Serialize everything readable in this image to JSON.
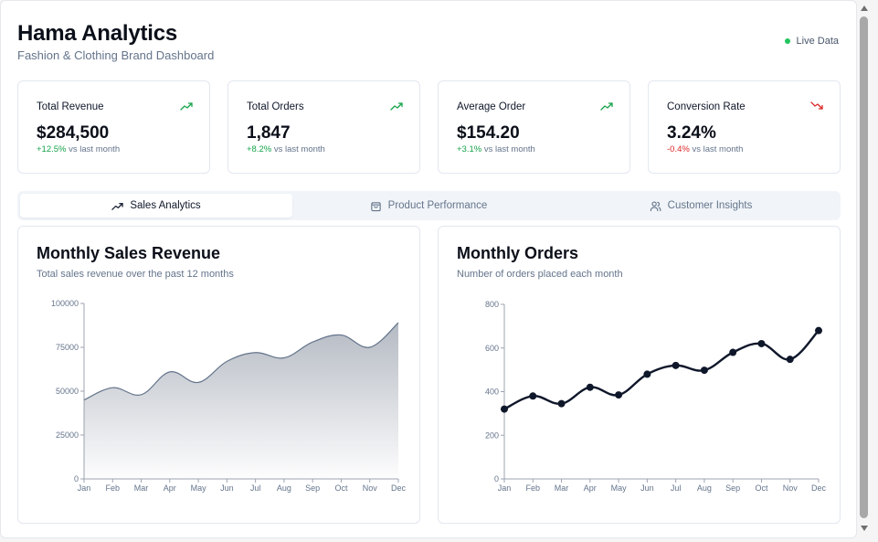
{
  "header": {
    "title": "Hama Analytics",
    "subtitle": "Fashion & Clothing Brand Dashboard",
    "live_label": "Live Data",
    "live_color": "#22c55e"
  },
  "kpis": [
    {
      "label": "Total Revenue",
      "value": "$284,500",
      "change": "+12.5%",
      "change_suffix": "vs last month",
      "trend": "up",
      "icon": "trending-up-icon"
    },
    {
      "label": "Total Orders",
      "value": "1,847",
      "change": "+8.2%",
      "change_suffix": "vs last month",
      "trend": "up",
      "icon": "trending-up-icon"
    },
    {
      "label": "Average Order",
      "value": "$154.20",
      "change": "+3.1%",
      "change_suffix": "vs last month",
      "trend": "up",
      "icon": "trending-up-icon"
    },
    {
      "label": "Conversion Rate",
      "value": "3.24%",
      "change": "-0.4%",
      "change_suffix": "vs last month",
      "trend": "down",
      "icon": "trending-down-icon"
    }
  ],
  "tabs": [
    {
      "label": "Sales Analytics",
      "icon": "trending-up-icon",
      "active": true
    },
    {
      "label": "Product Performance",
      "icon": "shopping-bag-icon",
      "active": false
    },
    {
      "label": "Customer Insights",
      "icon": "users-icon",
      "active": false
    }
  ],
  "chart_data": [
    {
      "type": "area",
      "title": "Monthly Sales Revenue",
      "subtitle": "Total sales revenue over the past 12 months",
      "categories": [
        "Jan",
        "Feb",
        "Mar",
        "Apr",
        "May",
        "Jun",
        "Jul",
        "Aug",
        "Sep",
        "Oct",
        "Nov",
        "Dec"
      ],
      "values": [
        45000,
        52000,
        48000,
        61000,
        55000,
        67000,
        72000,
        69000,
        78000,
        82000,
        75000,
        89000
      ],
      "yticks": [
        0,
        25000,
        50000,
        75000,
        100000
      ],
      "ylim": [
        0,
        100000
      ],
      "xlabel": "",
      "ylabel": "",
      "grid": false,
      "color": "#64748b"
    },
    {
      "type": "line",
      "title": "Monthly Orders",
      "subtitle": "Number of orders placed each month",
      "categories": [
        "Jan",
        "Feb",
        "Mar",
        "Apr",
        "May",
        "Jun",
        "Jul",
        "Aug",
        "Sep",
        "Oct",
        "Nov",
        "Dec"
      ],
      "values": [
        320,
        380,
        345,
        420,
        385,
        480,
        520,
        498,
        580,
        620,
        548,
        680
      ],
      "yticks": [
        0,
        200,
        400,
        600,
        800
      ],
      "ylim": [
        0,
        800
      ],
      "xlabel": "",
      "ylabel": "",
      "grid": false,
      "color": "#0f172a"
    }
  ]
}
